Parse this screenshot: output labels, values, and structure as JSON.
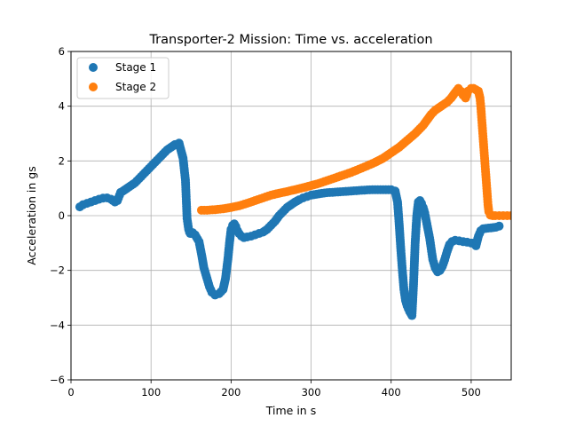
{
  "chart_data": {
    "type": "scatter",
    "title": "Transporter-2 Mission: Time vs. acceleration",
    "xlabel": "Time in s",
    "ylabel": "Acceleration in gs",
    "xlim": [
      0,
      550
    ],
    "ylim": [
      -6,
      6
    ],
    "xticks": [
      0,
      100,
      200,
      300,
      400,
      500
    ],
    "yticks": [
      -6,
      -4,
      -2,
      0,
      2,
      4,
      6
    ],
    "grid": true,
    "legend_position": "top-left",
    "series": [
      {
        "name": "Stage 1",
        "color": "#1f77b4",
        "x": [
          11,
          15,
          20,
          25,
          30,
          35,
          40,
          45,
          50,
          55,
          58,
          62,
          65,
          70,
          75,
          80,
          85,
          90,
          95,
          100,
          105,
          110,
          115,
          120,
          125,
          130,
          135,
          140,
          143,
          144,
          145,
          146,
          147,
          148,
          149,
          150,
          152,
          155,
          160,
          163,
          166,
          170,
          173,
          176,
          180,
          185,
          190,
          193,
          196,
          198,
          200,
          202,
          204,
          206,
          208,
          210,
          213,
          216,
          220,
          225,
          230,
          235,
          240,
          245,
          250,
          255,
          260,
          265,
          270,
          275,
          280,
          285,
          290,
          295,
          300,
          310,
          320,
          330,
          340,
          350,
          360,
          370,
          380,
          390,
          400,
          405,
          408,
          410,
          412,
          414,
          416,
          418,
          420,
          423,
          426,
          428,
          430,
          432,
          434,
          436,
          438,
          440,
          442,
          444,
          446,
          448,
          450,
          452,
          455,
          458,
          461,
          464,
          467,
          470,
          473,
          476,
          480,
          485,
          490,
          495,
          500,
          503,
          506,
          509,
          512,
          515,
          531,
          535
        ],
        "y": [
          0.32,
          0.4,
          0.45,
          0.5,
          0.55,
          0.6,
          0.64,
          0.65,
          0.6,
          0.5,
          0.55,
          0.85,
          0.9,
          1.0,
          1.1,
          1.2,
          1.35,
          1.5,
          1.65,
          1.8,
          1.95,
          2.1,
          2.25,
          2.4,
          2.5,
          2.6,
          2.65,
          2.1,
          1.3,
          0.6,
          -0.1,
          -0.3,
          -0.5,
          -0.6,
          -0.65,
          -0.65,
          -0.62,
          -0.7,
          -0.95,
          -1.4,
          -1.9,
          -2.3,
          -2.6,
          -2.8,
          -2.9,
          -2.85,
          -2.7,
          -2.3,
          -1.6,
          -1.0,
          -0.5,
          -0.35,
          -0.3,
          -0.4,
          -0.55,
          -0.65,
          -0.75,
          -0.8,
          -0.78,
          -0.75,
          -0.7,
          -0.65,
          -0.6,
          -0.5,
          -0.35,
          -0.2,
          0.0,
          0.15,
          0.3,
          0.4,
          0.5,
          0.58,
          0.65,
          0.7,
          0.75,
          0.8,
          0.84,
          0.86,
          0.88,
          0.9,
          0.92,
          0.94,
          0.95,
          0.95,
          0.95,
          0.9,
          0.5,
          -0.3,
          -1.2,
          -2.0,
          -2.7,
          -3.1,
          -3.3,
          -3.5,
          -3.65,
          -2.5,
          -1.0,
          0.0,
          0.5,
          0.55,
          0.45,
          0.3,
          0.1,
          -0.2,
          -0.5,
          -0.8,
          -1.2,
          -1.6,
          -1.9,
          -2.05,
          -2.0,
          -1.85,
          -1.6,
          -1.3,
          -1.05,
          -0.95,
          -0.9,
          -0.92,
          -0.95,
          -0.97,
          -1.0,
          -1.0,
          -1.1,
          -0.75,
          -0.55,
          -0.48,
          -0.42,
          -0.38
        ]
      },
      {
        "name": "Stage 2",
        "color": "#ff7f0e",
        "x": [
          163,
          170,
          180,
          190,
          200,
          210,
          220,
          230,
          240,
          250,
          260,
          270,
          280,
          290,
          300,
          310,
          320,
          330,
          340,
          350,
          360,
          370,
          380,
          390,
          400,
          410,
          420,
          430,
          440,
          450,
          455,
          460,
          465,
          470,
          475,
          480,
          484,
          487,
          490,
          493,
          496,
          500,
          503,
          506,
          509,
          511,
          512,
          513,
          514,
          515,
          516,
          517,
          518,
          519,
          520,
          521,
          522,
          524,
          527,
          530,
          535,
          540,
          545,
          550
        ],
        "y": [
          0.2,
          0.2,
          0.22,
          0.25,
          0.3,
          0.36,
          0.45,
          0.55,
          0.65,
          0.75,
          0.82,
          0.88,
          0.95,
          1.02,
          1.1,
          1.18,
          1.28,
          1.38,
          1.48,
          1.58,
          1.7,
          1.82,
          1.95,
          2.1,
          2.3,
          2.5,
          2.75,
          3.0,
          3.3,
          3.7,
          3.85,
          3.95,
          4.05,
          4.15,
          4.3,
          4.5,
          4.65,
          4.55,
          4.4,
          4.3,
          4.55,
          4.65,
          4.65,
          4.6,
          4.55,
          4.3,
          4.0,
          3.6,
          3.2,
          2.8,
          2.4,
          2.0,
          1.6,
          1.2,
          0.8,
          0.4,
          0.15,
          0.02,
          0.0,
          0.0,
          0.0,
          0.0,
          0.0,
          0.0
        ]
      }
    ]
  }
}
